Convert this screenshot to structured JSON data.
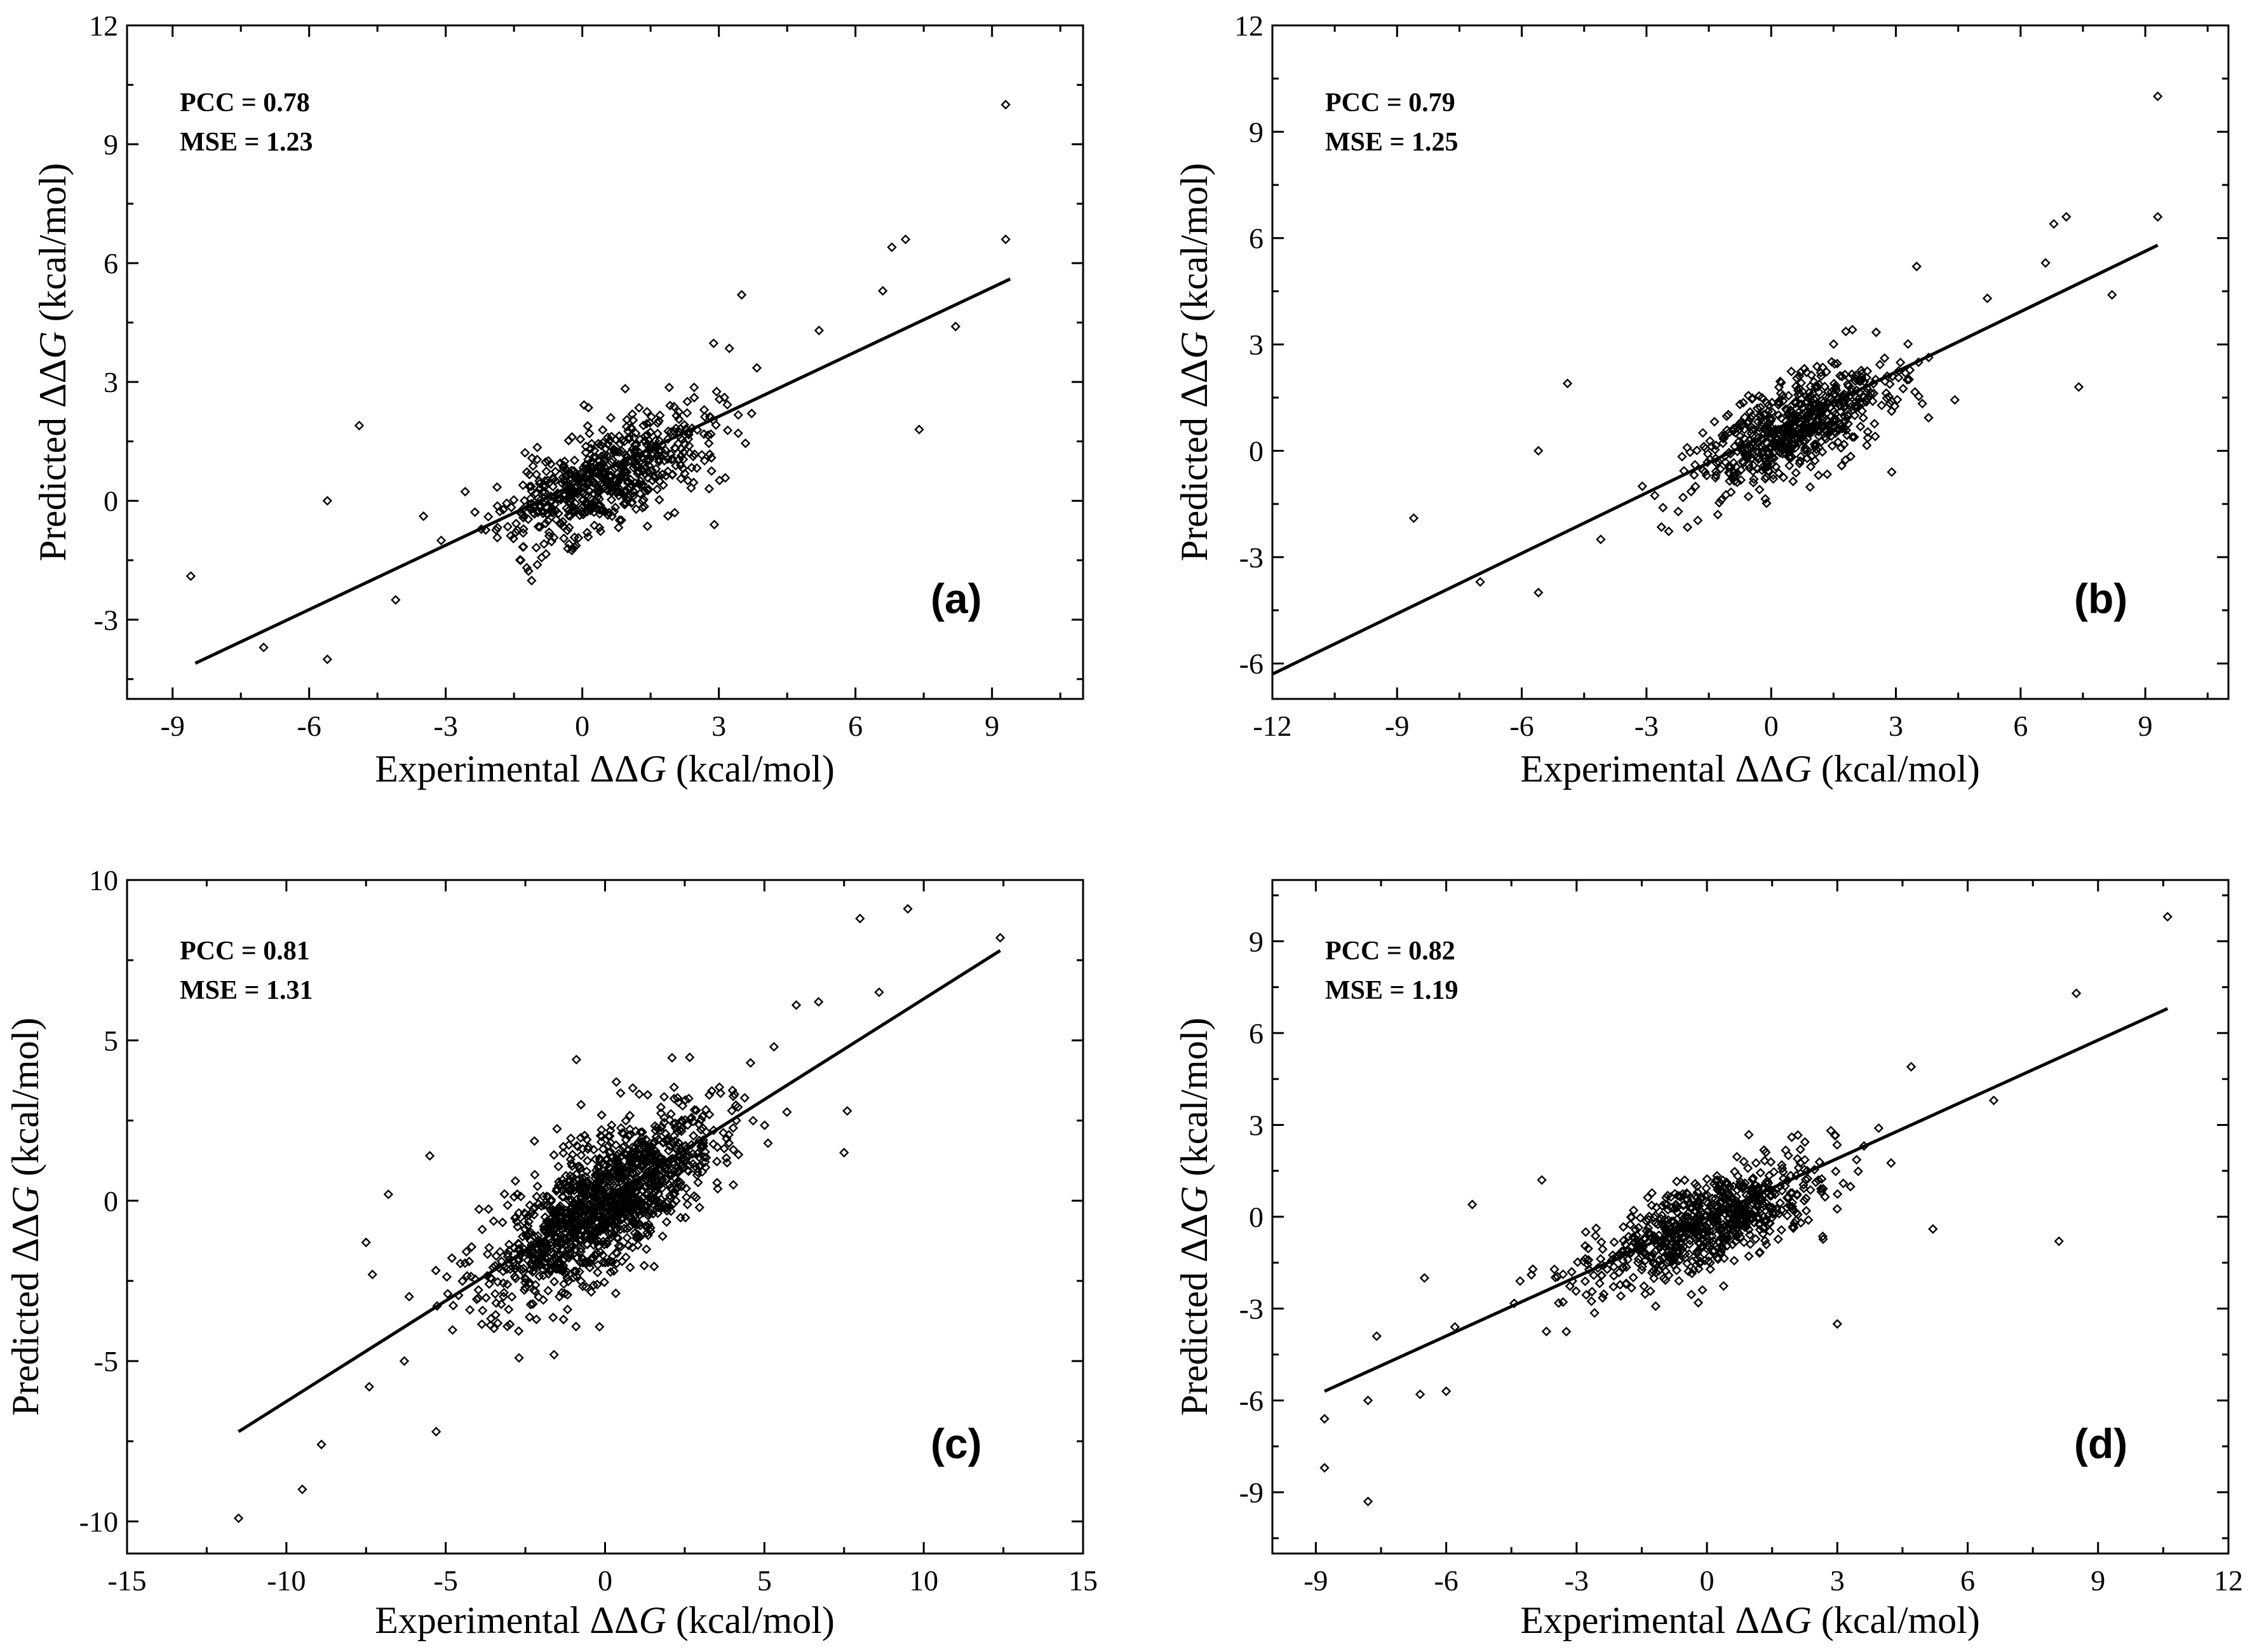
{
  "chart_data": [
    {
      "type": "scatter",
      "panel_label": "(a)",
      "pcc_text": "PCC = 0.78",
      "mse_text": "MSE = 1.23",
      "xlabel": {
        "prefix": "Experimental ΔΔ",
        "var": "G",
        "suffix": " (kcal/mol)"
      },
      "ylabel": {
        "prefix": "Predicted ΔΔ",
        "var": "G",
        "suffix": " (kcal/mol)"
      },
      "xlim": [
        -10,
        11
      ],
      "ylim": [
        -5,
        12
      ],
      "xticks": [
        -9,
        -6,
        -3,
        0,
        3,
        6,
        9
      ],
      "yticks": [
        -3,
        0,
        3,
        6,
        9,
        12
      ],
      "fit_line": [
        [
          -8.5,
          -4.1
        ],
        [
          9.4,
          5.6
        ]
      ],
      "outliers": [
        [
          -8.6,
          -1.9
        ],
        [
          -7.0,
          -3.7
        ],
        [
          -5.6,
          0.0
        ],
        [
          -5.6,
          -4.0
        ],
        [
          -4.9,
          1.9
        ],
        [
          -4.1,
          -2.5
        ],
        [
          9.3,
          10.0
        ],
        [
          9.3,
          6.6
        ],
        [
          7.1,
          6.6
        ],
        [
          6.8,
          6.4
        ],
        [
          7.4,
          1.8
        ],
        [
          8.2,
          4.4
        ],
        [
          6.6,
          5.3
        ],
        [
          5.2,
          4.3
        ],
        [
          3.5,
          5.2
        ],
        [
          2.9,
          -0.6
        ],
        [
          -3.1,
          -1.0
        ]
      ],
      "cluster": {
        "n": 620,
        "cx": 0.5,
        "cy": 0.6,
        "sx": 1.15,
        "sy": 0.85,
        "corr": 0.65,
        "seed": 11
      }
    },
    {
      "type": "scatter",
      "panel_label": "(b)",
      "pcc_text": "PCC = 0.79",
      "mse_text": "MSE = 1.25",
      "xlabel": {
        "prefix": "Experimental ΔΔ",
        "var": "G",
        "suffix": " (kcal/mol)"
      },
      "ylabel": {
        "prefix": "Predicted ΔΔ",
        "var": "G",
        "suffix": " (kcal/mol)"
      },
      "xlim": [
        -12,
        11
      ],
      "ylim": [
        -7,
        12
      ],
      "xticks": [
        -12,
        -9,
        -6,
        -3,
        0,
        3,
        6,
        9
      ],
      "yticks": [
        -6,
        -3,
        0,
        3,
        6,
        9,
        12
      ],
      "fit_line": [
        [
          -12.0,
          -6.3
        ],
        [
          9.3,
          5.8
        ]
      ],
      "outliers": [
        [
          -8.6,
          -1.9
        ],
        [
          -7.0,
          -3.7
        ],
        [
          -5.6,
          0.0
        ],
        [
          -5.6,
          -4.0
        ],
        [
          -4.9,
          1.9
        ],
        [
          -4.1,
          -2.5
        ],
        [
          9.3,
          10.0
        ],
        [
          9.3,
          6.6
        ],
        [
          7.1,
          6.6
        ],
        [
          6.8,
          6.4
        ],
        [
          7.4,
          1.8
        ],
        [
          8.2,
          4.4
        ],
        [
          6.6,
          5.3
        ],
        [
          5.2,
          4.3
        ],
        [
          3.5,
          5.2
        ],
        [
          2.9,
          -0.6
        ],
        [
          -3.1,
          -1.0
        ]
      ],
      "cluster": {
        "n": 620,
        "cx": 0.5,
        "cy": 0.6,
        "sx": 1.15,
        "sy": 0.85,
        "corr": 0.65,
        "seed": 23
      }
    },
    {
      "type": "scatter",
      "panel_label": "(c)",
      "pcc_text": "PCC = 0.81",
      "mse_text": "MSE = 1.31",
      "xlabel": {
        "prefix": "Experimental ΔΔ",
        "var": "G",
        "suffix": " (kcal/mol)"
      },
      "ylabel": {
        "prefix": "Predicted ΔΔ",
        "var": "G",
        "suffix": " (kcal/mol)"
      },
      "xlim": [
        -15,
        15
      ],
      "ylim": [
        -11,
        10
      ],
      "xticks": [
        -15,
        -10,
        -5,
        0,
        5,
        10,
        15
      ],
      "yticks": [
        -10,
        -5,
        0,
        5,
        10
      ],
      "fit_line": [
        [
          -11.5,
          -7.2
        ],
        [
          12.4,
          7.8
        ]
      ],
      "outliers": [
        [
          -11.5,
          -9.9
        ],
        [
          -9.5,
          -9.0
        ],
        [
          -8.9,
          -7.6
        ],
        [
          -7.4,
          -5.8
        ],
        [
          -5.3,
          -7.2
        ],
        [
          -5.5,
          1.4
        ],
        [
          -6.8,
          0.2
        ],
        [
          -7.5,
          -1.3
        ],
        [
          -7.3,
          -2.3
        ],
        [
          -6.3,
          -5.0
        ],
        [
          12.4,
          8.2
        ],
        [
          9.5,
          9.1
        ],
        [
          8.0,
          8.8
        ],
        [
          8.6,
          6.5
        ],
        [
          7.6,
          2.8
        ],
        [
          7.5,
          1.5
        ],
        [
          6.0,
          6.1
        ],
        [
          6.7,
          6.2
        ],
        [
          5.3,
          4.8
        ],
        [
          -1.6,
          -4.8
        ],
        [
          -2.7,
          -4.9
        ],
        [
          -0.9,
          4.4
        ]
      ],
      "cluster": {
        "n": 1300,
        "cx": -0.1,
        "cy": -0.1,
        "sx": 1.8,
        "sy": 1.5,
        "corr": 0.72,
        "seed": 37
      }
    },
    {
      "type": "scatter",
      "panel_label": "(d)",
      "pcc_text": "PCC = 0.82",
      "mse_text": "MSE = 1.19",
      "xlabel": {
        "prefix": "Experimental ΔΔ",
        "var": "G",
        "suffix": " (kcal/mol)"
      },
      "ylabel": {
        "prefix": "Predicted ΔΔ",
        "var": "G",
        "suffix": " (kcal/mol)"
      },
      "xlim": [
        -10,
        12
      ],
      "ylim": [
        -11,
        11
      ],
      "xticks": [
        -9,
        -6,
        -3,
        0,
        3,
        6,
        9,
        12
      ],
      "yticks": [
        -9,
        -6,
        -3,
        0,
        3,
        6,
        9
      ],
      "fit_line": [
        [
          -8.8,
          -5.7
        ],
        [
          10.6,
          6.8
        ]
      ],
      "outliers": [
        [
          10.6,
          9.8
        ],
        [
          8.5,
          7.3
        ],
        [
          6.6,
          3.8
        ],
        [
          8.1,
          -0.8
        ],
        [
          5.2,
          -0.4
        ],
        [
          -8.8,
          -6.6
        ],
        [
          -8.8,
          -8.2
        ],
        [
          -7.8,
          -9.3
        ],
        [
          -7.8,
          -6.0
        ],
        [
          -6.6,
          -5.8
        ],
        [
          -6.0,
          -5.7
        ],
        [
          -7.6,
          -3.9
        ],
        [
          -6.5,
          -2.0
        ],
        [
          -5.4,
          0.4
        ],
        [
          -3.8,
          1.2
        ],
        [
          -4.3,
          -2.1
        ],
        [
          4.7,
          4.9
        ],
        [
          3.0,
          -3.5
        ],
        [
          -5.8,
          -3.6
        ]
      ],
      "cluster": {
        "n": 750,
        "cx": 0.0,
        "cy": -0.2,
        "sx": 1.3,
        "sy": 1.0,
        "corr": 0.68,
        "seed": 53
      }
    }
  ]
}
